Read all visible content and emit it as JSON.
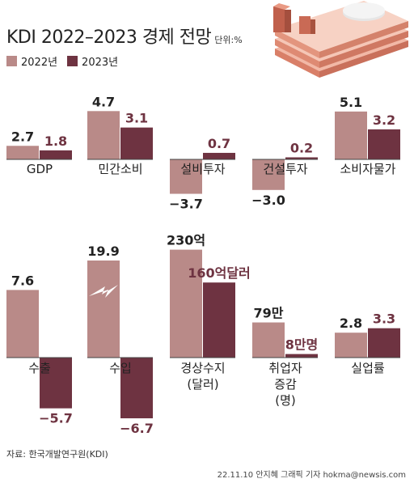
{
  "title": "KDI 2022–2023 경제 전망",
  "unit": "단위:%",
  "legend": [
    {
      "label": "2022년",
      "color": "#b98a88"
    },
    {
      "label": "2023년",
      "color": "#6e3341"
    }
  ],
  "source": "자료: 한국개발연구원(KDI)",
  "footer": "22.11.10 안지혜 그래픽 기자 hokma@newsis.com",
  "chart_data": [
    {
      "type": "bar",
      "categories": [
        "GDP"
      ],
      "series": [
        {
          "name": "2022년",
          "values": [
            2.7
          ]
        },
        {
          "name": "2023년",
          "values": [
            1.8
          ]
        }
      ],
      "value_labels": [
        "2.7",
        "1.8"
      ]
    },
    {
      "type": "bar",
      "categories": [
        "민간소비"
      ],
      "series": [
        {
          "name": "2022년",
          "values": [
            4.7
          ]
        },
        {
          "name": "2023년",
          "values": [
            3.1
          ]
        }
      ],
      "value_labels": [
        "4.7",
        "3.1"
      ]
    },
    {
      "type": "bar",
      "categories": [
        "설비투자"
      ],
      "series": [
        {
          "name": "2022년",
          "values": [
            -3.7
          ]
        },
        {
          "name": "2023년",
          "values": [
            0.7
          ]
        }
      ],
      "value_labels": [
        "−3.7",
        "0.7"
      ]
    },
    {
      "type": "bar",
      "categories": [
        "건설투자"
      ],
      "series": [
        {
          "name": "2022년",
          "values": [
            -3.0
          ]
        },
        {
          "name": "2023년",
          "values": [
            0.2
          ]
        }
      ],
      "value_labels": [
        "−3.0",
        "0.2"
      ]
    },
    {
      "type": "bar",
      "categories": [
        "소비자물가"
      ],
      "series": [
        {
          "name": "2022년",
          "values": [
            5.1
          ]
        },
        {
          "name": "2023년",
          "values": [
            3.2
          ]
        }
      ],
      "value_labels": [
        "5.1",
        "3.2"
      ]
    },
    {
      "type": "bar",
      "categories": [
        "수출"
      ],
      "series": [
        {
          "name": "2022년",
          "values": [
            7.6
          ]
        },
        {
          "name": "2023년",
          "values": [
            -5.7
          ]
        }
      ],
      "value_labels": [
        "7.6",
        "−5.7"
      ]
    },
    {
      "type": "bar",
      "categories": [
        "수입"
      ],
      "series": [
        {
          "name": "2022년",
          "values": [
            19.9
          ]
        },
        {
          "name": "2023년",
          "values": [
            -6.7
          ]
        }
      ],
      "value_labels": [
        "19.9",
        "−6.7"
      ],
      "axis_break": true
    },
    {
      "type": "bar",
      "categories": [
        "경상수지 (달러)"
      ],
      "series": [
        {
          "name": "2022년",
          "values": [
            230
          ]
        },
        {
          "name": "2023년",
          "values": [
            160
          ]
        }
      ],
      "value_labels": [
        "230억",
        "160억달러"
      ]
    },
    {
      "type": "bar",
      "categories": [
        "취업자 증감 (명)"
      ],
      "series": [
        {
          "name": "2022년",
          "values": [
            79
          ]
        },
        {
          "name": "2023년",
          "values": [
            8
          ]
        }
      ],
      "value_labels": [
        "79만",
        "8만명"
      ]
    },
    {
      "type": "bar",
      "categories": [
        "실업률"
      ],
      "series": [
        {
          "name": "2022년",
          "values": [
            2.8
          ]
        },
        {
          "name": "2023년",
          "values": [
            3.3
          ]
        }
      ],
      "value_labels": [
        "2.8",
        "3.3"
      ]
    }
  ]
}
